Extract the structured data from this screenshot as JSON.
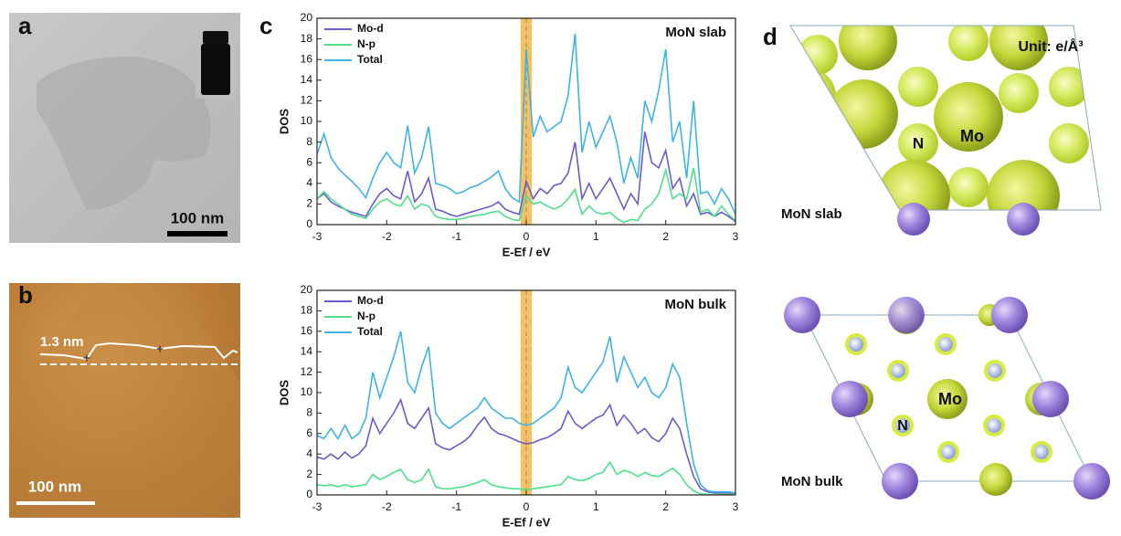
{
  "figure": {
    "panel_labels": [
      "a",
      "b",
      "c",
      "d"
    ],
    "a": {
      "scale_bar": "100 nm"
    },
    "b": {
      "height": "1.3 nm",
      "scale_bar": "100 nm"
    },
    "d": {
      "unit": "Unit: e/Å³",
      "slab": {
        "mo": "Mo",
        "n": "N",
        "caption": "MoN slab"
      },
      "bulk": {
        "mo": "Mo",
        "n": "N",
        "caption": "MoN bulk"
      }
    }
  },
  "chart_data": [
    {
      "type": "line",
      "annotation": "MoN slab",
      "xlabel": "E-Ef / eV",
      "ylabel": "DOS",
      "xlim": [
        -3,
        3
      ],
      "ylim": [
        0,
        20
      ],
      "xticks": [
        -3,
        -2,
        -1,
        0,
        1,
        2,
        3
      ],
      "yticks": [
        0,
        2,
        4,
        6,
        8,
        10,
        12,
        14,
        16,
        18,
        20
      ],
      "highlight": [
        -0.08,
        0.08
      ],
      "highlight_color": "#f5c060",
      "vline": 0,
      "x": [
        -3.0,
        -2.9,
        -2.8,
        -2.7,
        -2.6,
        -2.5,
        -2.4,
        -2.3,
        -2.2,
        -2.1,
        -2.0,
        -1.9,
        -1.8,
        -1.7,
        -1.6,
        -1.5,
        -1.4,
        -1.3,
        -1.2,
        -1.1,
        -1.0,
        -0.9,
        -0.8,
        -0.7,
        -0.6,
        -0.5,
        -0.4,
        -0.3,
        -0.2,
        -0.1,
        0.0,
        0.1,
        0.2,
        0.3,
        0.4,
        0.5,
        0.6,
        0.7,
        0.8,
        0.9,
        1.0,
        1.1,
        1.2,
        1.3,
        1.4,
        1.5,
        1.6,
        1.7,
        1.8,
        1.9,
        2.0,
        2.1,
        2.2,
        2.3,
        2.4,
        2.5,
        2.6,
        2.7,
        2.8,
        2.9,
        3.0
      ],
      "series": [
        {
          "name": "Mo-d",
          "color": "#6a5acd",
          "values": [
            2.5,
            3.0,
            2.2,
            1.8,
            1.5,
            1.2,
            1.0,
            0.8,
            2.0,
            3.0,
            3.5,
            2.8,
            2.5,
            5.2,
            2.2,
            3.0,
            4.5,
            1.5,
            1.3,
            1.0,
            0.8,
            1.0,
            1.2,
            1.4,
            1.6,
            1.8,
            2.2,
            1.5,
            1.2,
            1.0,
            4.2,
            2.5,
            3.5,
            3.0,
            3.8,
            4.0,
            5.0,
            8.0,
            2.5,
            4.0,
            2.5,
            3.5,
            4.5,
            3.0,
            1.5,
            3.0,
            2.0,
            9.0,
            6.0,
            5.5,
            7.2,
            3.5,
            4.5,
            1.8,
            3.0,
            1.0,
            1.2,
            0.8,
            1.2,
            0.8,
            0.3
          ]
        },
        {
          "name": "N-p",
          "color": "#4ee08a",
          "values": [
            2.5,
            3.2,
            2.5,
            2.0,
            1.5,
            1.0,
            0.8,
            0.6,
            1.5,
            2.2,
            2.5,
            2.0,
            1.8,
            2.8,
            1.5,
            2.0,
            1.8,
            0.8,
            0.6,
            0.5,
            0.5,
            0.6,
            0.8,
            0.9,
            1.0,
            1.2,
            1.3,
            0.8,
            0.5,
            0.4,
            2.8,
            2.0,
            2.2,
            1.8,
            1.5,
            1.8,
            2.5,
            3.4,
            1.0,
            1.8,
            1.2,
            1.0,
            1.2,
            0.6,
            0.2,
            0.5,
            0.4,
            1.5,
            2.0,
            3.0,
            5.3,
            2.5,
            3.0,
            2.5,
            5.5,
            1.2,
            1.5,
            0.8,
            1.8,
            1.0,
            0.4
          ]
        },
        {
          "name": "Total",
          "color": "#3cb4e6",
          "values": [
            6.8,
            8.8,
            6.5,
            5.5,
            4.8,
            4.2,
            3.5,
            2.6,
            4.5,
            6.0,
            7.0,
            6.0,
            5.5,
            9.6,
            5.0,
            6.5,
            9.5,
            4.0,
            3.8,
            3.5,
            3.0,
            3.2,
            3.6,
            3.8,
            4.2,
            4.6,
            5.2,
            3.5,
            2.6,
            2.2,
            17.0,
            8.5,
            10.5,
            9.0,
            9.5,
            10.0,
            12.5,
            18.5,
            7.0,
            10.0,
            7.5,
            9.0,
            10.5,
            8.0,
            4.0,
            6.5,
            4.5,
            12.0,
            10.0,
            13.0,
            17.0,
            8.0,
            10.0,
            4.5,
            12.0,
            3.0,
            3.2,
            2.0,
            3.5,
            2.5,
            1.0
          ]
        }
      ]
    },
    {
      "type": "line",
      "annotation": "MoN bulk",
      "xlabel": "E-Ef / eV",
      "ylabel": "DOS",
      "xlim": [
        -3,
        3
      ],
      "ylim": [
        0,
        20
      ],
      "xticks": [
        -3,
        -2,
        -1,
        0,
        1,
        2,
        3
      ],
      "yticks": [
        0,
        2,
        4,
        6,
        8,
        10,
        12,
        14,
        16,
        18,
        20
      ],
      "highlight": [
        -0.08,
        0.08
      ],
      "highlight_color": "#f5c060",
      "vline": 0,
      "x": [
        -3.0,
        -2.9,
        -2.8,
        -2.7,
        -2.6,
        -2.5,
        -2.4,
        -2.3,
        -2.2,
        -2.1,
        -2.0,
        -1.9,
        -1.8,
        -1.7,
        -1.6,
        -1.5,
        -1.4,
        -1.3,
        -1.2,
        -1.1,
        -1.0,
        -0.9,
        -0.8,
        -0.7,
        -0.6,
        -0.5,
        -0.4,
        -0.3,
        -0.2,
        -0.1,
        0.0,
        0.1,
        0.2,
        0.3,
        0.4,
        0.5,
        0.6,
        0.7,
        0.8,
        0.9,
        1.0,
        1.1,
        1.2,
        1.3,
        1.4,
        1.5,
        1.6,
        1.7,
        1.8,
        1.9,
        2.0,
        2.1,
        2.2,
        2.3,
        2.4,
        2.5,
        2.6,
        2.7,
        2.8,
        2.9,
        3.0
      ],
      "series": [
        {
          "name": "Mo-d",
          "color": "#6a5acd",
          "values": [
            3.7,
            3.5,
            4.0,
            3.5,
            4.2,
            3.6,
            4.0,
            4.8,
            7.5,
            6.0,
            7.0,
            8.0,
            9.3,
            7.0,
            6.5,
            7.5,
            8.5,
            5.0,
            4.6,
            4.4,
            4.8,
            5.2,
            5.8,
            6.8,
            7.6,
            6.5,
            6.0,
            5.8,
            5.5,
            5.2,
            5.0,
            5.1,
            5.4,
            5.6,
            6.0,
            6.5,
            8.2,
            7.0,
            6.5,
            7.0,
            7.5,
            7.8,
            8.8,
            6.8,
            7.8,
            7.0,
            6.0,
            6.5,
            5.6,
            5.2,
            6.0,
            7.5,
            6.5,
            4.0,
            1.8,
            0.6,
            0.3,
            0.2,
            0.2,
            0.2,
            0.1
          ]
        },
        {
          "name": "N-p",
          "color": "#4ee08a",
          "values": [
            1.0,
            0.9,
            1.0,
            0.8,
            1.0,
            0.8,
            0.9,
            1.0,
            2.0,
            1.5,
            1.8,
            2.2,
            2.5,
            1.5,
            1.2,
            1.5,
            2.5,
            0.8,
            0.6,
            0.6,
            0.7,
            0.8,
            1.0,
            1.2,
            1.5,
            1.0,
            0.8,
            0.7,
            0.6,
            0.6,
            0.5,
            0.6,
            0.7,
            0.8,
            0.9,
            1.0,
            1.8,
            1.5,
            1.4,
            1.6,
            2.0,
            2.2,
            3.2,
            2.0,
            2.4,
            2.2,
            1.8,
            2.2,
            1.9,
            1.8,
            2.2,
            2.6,
            2.0,
            1.0,
            0.4,
            0.1,
            0.05,
            0.05,
            0.05,
            0.05,
            0.05
          ]
        },
        {
          "name": "Total",
          "color": "#3cb4e6",
          "values": [
            5.8,
            5.5,
            6.5,
            5.5,
            6.8,
            5.5,
            6.0,
            7.5,
            12.0,
            9.5,
            11.5,
            13.5,
            16.0,
            11.0,
            10.0,
            12.5,
            14.5,
            8.0,
            7.0,
            6.5,
            7.0,
            7.5,
            8.0,
            8.5,
            9.5,
            8.5,
            8.0,
            7.5,
            7.5,
            7.0,
            6.8,
            7.0,
            7.5,
            8.0,
            8.5,
            9.5,
            12.5,
            10.5,
            10.0,
            11.0,
            12.0,
            13.0,
            15.5,
            11.0,
            13.5,
            12.0,
            10.5,
            11.5,
            10.0,
            9.5,
            10.5,
            12.8,
            11.5,
            7.0,
            3.0,
            1.0,
            0.4,
            0.3,
            0.3,
            0.3,
            0.2
          ]
        }
      ]
    }
  ]
}
